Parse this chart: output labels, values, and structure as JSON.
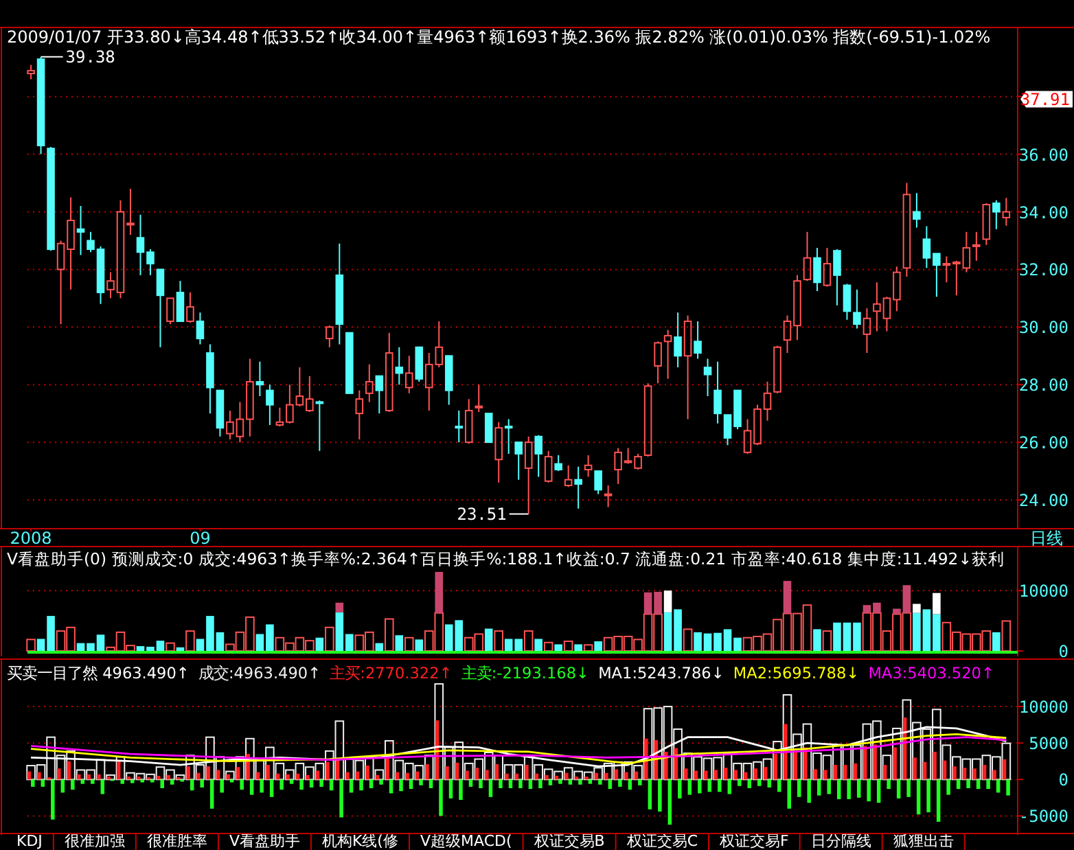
{
  "chart_data": [
    {
      "type": "candlestick",
      "subtitle": "2009/01/07 开33.80↓高34.48↑低33.52↑收34.00↑量4963↑额1693↑换2.36% 振2.82% 涨(0.01)0.03% 指数(-69.51)-1.02%",
      "categories": [
        "2008",
        null,
        null,
        null,
        null,
        null,
        null,
        null,
        null,
        null,
        null,
        null,
        null,
        null,
        null,
        null,
        null,
        "09",
        null,
        null,
        null,
        null,
        null,
        null,
        null,
        null,
        null,
        null,
        null,
        null,
        null,
        null,
        null,
        null,
        null,
        null,
        null,
        null,
        null,
        null,
        null,
        null,
        null,
        null,
        null,
        null,
        null,
        null,
        null,
        null,
        null,
        null,
        null,
        null,
        null,
        null,
        null,
        null,
        null,
        null,
        null,
        null,
        null,
        null,
        null,
        null,
        null,
        null,
        null,
        null,
        null,
        null,
        null,
        null,
        null,
        null,
        null,
        null,
        null,
        null,
        null,
        null,
        null,
        null,
        null,
        null,
        null,
        null,
        null,
        null,
        null,
        null,
        null,
        null,
        null,
        null,
        null,
        null,
        null
      ],
      "ohlc": [
        [
          38.8,
          39.1,
          38.6,
          38.9
        ],
        [
          39.3,
          39.38,
          36.0,
          36.3
        ],
        [
          36.2,
          36.25,
          32.65,
          32.7
        ],
        [
          32.0,
          33.0,
          30.1,
          32.9
        ],
        [
          32.7,
          34.5,
          31.3,
          33.7
        ],
        [
          33.4,
          34.2,
          32.5,
          33.3
        ],
        [
          33.0,
          33.3,
          32.6,
          32.7
        ],
        [
          32.7,
          32.8,
          30.8,
          31.2
        ],
        [
          31.3,
          31.9,
          31.0,
          31.6
        ],
        [
          31.2,
          34.4,
          31.0,
          34.0
        ],
        [
          33.55,
          34.8,
          33.2,
          33.6
        ],
        [
          33.1,
          33.9,
          31.8,
          32.6
        ],
        [
          32.6,
          32.7,
          31.8,
          32.2
        ],
        [
          32.0,
          32.0,
          29.3,
          31.1
        ],
        [
          30.2,
          31.0,
          30.1,
          31.0
        ],
        [
          31.2,
          31.6,
          30.2,
          30.2
        ],
        [
          30.2,
          31.2,
          30.15,
          30.7
        ],
        [
          30.2,
          30.5,
          29.4,
          29.6
        ],
        [
          29.1,
          29.4,
          27.0,
          27.9
        ],
        [
          27.8,
          27.8,
          26.2,
          26.5
        ],
        [
          26.3,
          27.1,
          26.1,
          26.7
        ],
        [
          26.2,
          27.4,
          26.0,
          26.8
        ],
        [
          26.8,
          28.9,
          26.2,
          28.1
        ],
        [
          28.1,
          28.8,
          27.6,
          28.0
        ],
        [
          27.8,
          28.0,
          26.6,
          27.3
        ],
        [
          26.6,
          27.2,
          26.55,
          26.7
        ],
        [
          26.7,
          28.0,
          26.65,
          27.3
        ],
        [
          27.3,
          28.6,
          27.25,
          27.6
        ],
        [
          27.1,
          28.3,
          27.05,
          27.5
        ],
        [
          27.4,
          27.45,
          25.7,
          27.35
        ],
        [
          29.6,
          30.05,
          29.3,
          30.0
        ],
        [
          31.8,
          32.9,
          29.4,
          30.1
        ],
        [
          29.8,
          29.8,
          27.7,
          27.7
        ],
        [
          27.0,
          27.8,
          26.1,
          27.5
        ],
        [
          27.7,
          28.7,
          27.4,
          28.1
        ],
        [
          28.3,
          28.3,
          27.0,
          27.8
        ],
        [
          27.1,
          29.8,
          27.05,
          29.1
        ],
        [
          28.6,
          29.3,
          28.0,
          28.4
        ],
        [
          27.9,
          29.0,
          27.7,
          28.4
        ],
        [
          29.3,
          29.3,
          28.1,
          28.2
        ],
        [
          27.9,
          29.1,
          27.1,
          28.7
        ],
        [
          28.7,
          30.2,
          28.6,
          29.3
        ],
        [
          29.0,
          29.0,
          27.3,
          27.8
        ],
        [
          26.55,
          27.1,
          26.0,
          26.5
        ],
        [
          26.0,
          27.5,
          25.95,
          27.1
        ],
        [
          27.2,
          28.0,
          27.05,
          27.25
        ],
        [
          27.0,
          27.0,
          26.0,
          26.0
        ],
        [
          25.4,
          26.7,
          24.6,
          26.5
        ],
        [
          26.55,
          26.8,
          25.6,
          26.5
        ],
        [
          26.0,
          26.0,
          24.7,
          25.6
        ],
        [
          25.1,
          26.2,
          23.51,
          26.0
        ],
        [
          26.2,
          26.25,
          24.8,
          25.6
        ],
        [
          24.65,
          25.7,
          24.6,
          25.5
        ],
        [
          25.25,
          25.55,
          25.0,
          25.05
        ],
        [
          24.5,
          25.2,
          24.45,
          24.7
        ],
        [
          24.7,
          25.15,
          23.7,
          24.55
        ],
        [
          25.05,
          25.55,
          24.8,
          25.2
        ],
        [
          25.0,
          25.0,
          24.2,
          24.35
        ],
        [
          24.15,
          24.5,
          23.75,
          24.2
        ],
        [
          25.05,
          25.8,
          24.55,
          25.65
        ],
        [
          25.3,
          25.8,
          25.25,
          25.35
        ],
        [
          25.1,
          25.6,
          25.05,
          25.5
        ],
        [
          25.55,
          28.05,
          25.5,
          27.95
        ],
        [
          28.65,
          29.5,
          28.05,
          29.45
        ],
        [
          29.5,
          29.9,
          28.2,
          29.7
        ],
        [
          29.65,
          30.5,
          28.6,
          29.0
        ],
        [
          29.0,
          30.4,
          26.8,
          30.2
        ],
        [
          29.5,
          30.2,
          28.9,
          29.1
        ],
        [
          28.6,
          28.9,
          27.6,
          28.35
        ],
        [
          27.8,
          28.8,
          26.65,
          27.0
        ],
        [
          26.95,
          26.95,
          25.9,
          26.15
        ],
        [
          27.8,
          27.8,
          26.45,
          26.55
        ],
        [
          25.65,
          26.8,
          25.6,
          26.4
        ],
        [
          25.95,
          27.3,
          25.9,
          27.15
        ],
        [
          27.15,
          28.1,
          26.75,
          27.7
        ],
        [
          27.75,
          29.35,
          27.7,
          29.3
        ],
        [
          29.55,
          30.4,
          29.1,
          30.2
        ],
        [
          30.05,
          31.8,
          29.55,
          31.6
        ],
        [
          31.65,
          33.3,
          31.6,
          32.4
        ],
        [
          32.4,
          32.75,
          31.25,
          31.55
        ],
        [
          31.45,
          32.75,
          31.4,
          32.2
        ],
        [
          32.65,
          32.7,
          30.75,
          31.8
        ],
        [
          31.45,
          31.5,
          30.25,
          30.55
        ],
        [
          30.5,
          31.3,
          29.95,
          30.1
        ],
        [
          29.75,
          30.65,
          29.1,
          30.3
        ],
        [
          30.55,
          31.55,
          29.85,
          30.8
        ],
        [
          30.3,
          31.05,
          29.85,
          31.0
        ],
        [
          30.95,
          32.1,
          30.55,
          31.9
        ],
        [
          32.05,
          35.0,
          31.75,
          34.6
        ],
        [
          34.0,
          34.65,
          33.45,
          33.75
        ],
        [
          33.05,
          33.5,
          32.05,
          32.4
        ],
        [
          32.55,
          32.55,
          31.05,
          32.15
        ],
        [
          32.15,
          32.45,
          31.55,
          32.2
        ],
        [
          32.2,
          32.3,
          31.1,
          32.25
        ],
        [
          32.05,
          33.3,
          31.9,
          32.75
        ],
        [
          32.8,
          33.3,
          32.3,
          32.85
        ],
        [
          33.05,
          34.3,
          32.85,
          34.25
        ],
        [
          34.3,
          34.4,
          33.4,
          34.0
        ],
        [
          33.8,
          34.48,
          33.52,
          34.0
        ]
      ],
      "colors": [
        "#ff5454",
        "#54fcfc",
        "#54fcfc",
        "#ff5454",
        "#ff5454",
        "#54fcfc",
        "#54fcfc",
        "#54fcfc",
        "#ff5454",
        "#ff5454",
        "#ff5454",
        "#54fcfc",
        "#54fcfc",
        "#54fcfc",
        "#ff5454",
        "#54fcfc",
        "#ff5454",
        "#54fcfc",
        "#54fcfc",
        "#54fcfc",
        "#ff5454",
        "#ff5454",
        "#ff5454",
        "#54fcfc",
        "#54fcfc",
        "#ff5454",
        "#ff5454",
        "#ff5454",
        "#ff5454",
        "#54fcfc",
        "#ff5454",
        "#54fcfc",
        "#54fcfc",
        "#ff5454",
        "#ff5454",
        "#54fcfc",
        "#ff5454",
        "#54fcfc",
        "#ff5454",
        "#54fcfc",
        "#ff5454",
        "#ff5454",
        "#54fcfc",
        "#54fcfc",
        "#ff5454",
        "#ff5454",
        "#54fcfc",
        "#ff5454",
        "#54fcfc",
        "#54fcfc",
        "#ff5454",
        "#54fcfc",
        "#ff5454",
        "#54fcfc",
        "#ff5454",
        "#54fcfc",
        "#ff5454",
        "#54fcfc",
        "#ff5454",
        "#ff5454",
        "#ff5454",
        "#ff5454",
        "#ff5454",
        "#ff5454",
        "#ff5454",
        "#54fcfc",
        "#ff5454",
        "#54fcfc",
        "#54fcfc",
        "#54fcfc",
        "#54fcfc",
        "#54fcfc",
        "#ff5454",
        "#ff5454",
        "#ff5454",
        "#ff5454",
        "#ff5454",
        "#ff5454",
        "#ff5454",
        "#54fcfc",
        "#ff5454",
        "#54fcfc",
        "#54fcfc",
        "#54fcfc",
        "#ff5454",
        "#ff5454",
        "#ff5454",
        "#ff5454",
        "#ff5454",
        "#54fcfc",
        "#54fcfc",
        "#54fcfc",
        "#ff5454",
        "#ff5454",
        "#ff5454",
        "#ff5454",
        "#ff5454",
        "#54fcfc",
        "#ff5454"
      ],
      "ylim": [
        23.0,
        40.4
      ],
      "yticks": [
        {
          "value": 24,
          "label": "24.00"
        },
        {
          "value": 26,
          "label": "26.00"
        },
        {
          "value": 28,
          "label": "28.00"
        },
        {
          "value": 30,
          "label": "30.00"
        },
        {
          "value": 32,
          "label": "32.00"
        },
        {
          "value": 34,
          "label": "34.00"
        },
        {
          "value": 36,
          "label": "36.00"
        },
        {
          "value": 38,
          "label": null
        }
      ],
      "grid": "y",
      "annotations": [
        "39.38",
        "23.51",
        "37.91",
        "日线"
      ]
    },
    {
      "type": "bar",
      "title": "V看盘助手(0) 预测成交:0 成交:4963↑换手率%:2.364↑百日换手%:188.1↑收益:0.7 流通盘:0.21 市盈率:40.618 集中度:11.492↓获利",
      "categories": [
        null,
        null,
        null,
        null,
        null,
        null,
        null,
        null,
        null,
        null,
        null,
        null,
        null,
        null,
        null,
        null,
        null,
        null,
        null,
        null,
        null,
        null,
        null,
        null,
        null,
        null,
        null,
        null,
        null,
        null,
        null,
        null,
        null,
        null,
        null,
        null,
        null,
        null,
        null,
        null,
        null,
        null,
        null,
        null,
        null,
        null,
        null,
        null,
        null,
        null,
        null,
        null,
        null,
        null,
        null,
        null,
        null,
        null,
        null,
        null,
        null,
        null,
        null,
        null,
        null,
        null,
        null,
        null,
        null,
        null,
        null,
        null,
        null,
        null,
        null,
        null,
        null,
        null,
        null,
        null,
        null,
        null,
        null,
        null,
        null,
        null,
        null,
        null,
        null,
        null,
        null,
        null,
        null,
        null,
        null,
        null,
        null,
        null,
        null
      ],
      "stacked": true,
      "series": [
        {
          "colors": [
            "#ff5454",
            "#54fcfc",
            "#54fcfc",
            "#ff5454",
            "#ff5454",
            "#54fcfc",
            "#54fcfc",
            "#54fcfc",
            "#ff5454",
            "#ff5454",
            "#ff5454",
            "#54fcfc",
            "#54fcfc",
            "#54fcfc",
            "#ff5454",
            "#54fcfc",
            "#ff5454",
            "#54fcfc",
            "#54fcfc",
            "#54fcfc",
            "#ff5454",
            "#ff5454",
            "#ff5454",
            "#54fcfc",
            "#54fcfc",
            "#ff5454",
            "#ff5454",
            "#ff5454",
            "#ff5454",
            "#54fcfc",
            "#ff5454",
            "#54fcfc",
            "#54fcfc",
            "#ff5454",
            "#ff5454",
            "#54fcfc",
            "#ff5454",
            "#54fcfc",
            "#ff5454",
            "#54fcfc",
            "#ff5454",
            "#ff5454",
            "#54fcfc",
            "#54fcfc",
            "#ff5454",
            "#ff5454",
            "#54fcfc",
            "#ff5454",
            "#54fcfc",
            "#54fcfc",
            "#ff5454",
            "#54fcfc",
            "#ff5454",
            "#54fcfc",
            "#ff5454",
            "#54fcfc",
            "#ff5454",
            "#54fcfc",
            "#ff5454",
            "#ff5454",
            "#ff5454",
            "#ff5454",
            "#ff5454",
            "#ff5454",
            "#54fcfc",
            "#54fcfc",
            "#ff5454",
            "#54fcfc",
            "#54fcfc",
            "#54fcfc",
            "#54fcfc",
            "#54fcfc",
            "#ff5454",
            "#ff5454",
            "#ff5454",
            "#ff5454",
            "#ff5454",
            "#ff5454",
            "#ff5454",
            "#54fcfc",
            "#ff5454",
            "#54fcfc",
            "#54fcfc",
            "#54fcfc",
            "#ff5454",
            "#ff5454",
            "#ff5454",
            "#ff5454",
            "#ff5454",
            "#54fcfc",
            "#54fcfc",
            "#54fcfc",
            "#ff5454",
            "#ff5454",
            "#ff5454",
            "#ff5454",
            "#ff5454",
            "#54fcfc",
            "#ff5454"
          ],
          "values": [
            1900,
            2000,
            5800,
            3300,
            3900,
            1300,
            1300,
            2700,
            600,
            3100,
            900,
            800,
            700,
            1700,
            1300,
            600,
            3300,
            2000,
            5800,
            3100,
            1100,
            3100,
            5600,
            2800,
            4400,
            2200,
            1300,
            2200,
            1700,
            2200,
            3900,
            6400,
            2800,
            2600,
            3100,
            1300,
            5300,
            2600,
            2200,
            1900,
            3300,
            6300,
            4400,
            5100,
            2200,
            2800,
            3700,
            3300,
            2000,
            2000,
            3300,
            2000,
            1400,
            1100,
            1600,
            1100,
            1000,
            1600,
            2200,
            2400,
            2400,
            1900,
            6100,
            6100,
            6400,
            6900,
            3600,
            3100,
            2900,
            3000,
            3600,
            2200,
            2200,
            2400,
            2800,
            5200,
            6200,
            6200,
            7600,
            3600,
            3300,
            4700,
            4700,
            4700,
            6300,
            6300,
            3300,
            6100,
            6300,
            6300,
            6900,
            6100,
            4700,
            3100,
            2800,
            2800,
            3300,
            3100,
            4963
          ]
        },
        {
          "colors": [
            null,
            null,
            null,
            null,
            null,
            null,
            null,
            null,
            null,
            null,
            null,
            null,
            null,
            null,
            null,
            null,
            null,
            null,
            null,
            null,
            null,
            null,
            null,
            null,
            null,
            null,
            null,
            null,
            null,
            null,
            null,
            "#c8466e",
            null,
            null,
            null,
            null,
            null,
            null,
            null,
            null,
            null,
            "#c8466e",
            null,
            null,
            null,
            null,
            null,
            null,
            null,
            null,
            null,
            null,
            null,
            null,
            null,
            null,
            null,
            null,
            null,
            null,
            null,
            null,
            "#c8466e",
            "#c8466e",
            "#ffffff",
            null,
            null,
            null,
            null,
            null,
            null,
            null,
            null,
            null,
            null,
            null,
            "#c8466e",
            null,
            null,
            null,
            null,
            null,
            null,
            null,
            "#c8466e",
            "#c8466e",
            null,
            "#c8466e",
            "#c8466e",
            "#ffffff",
            null,
            "#ffffff",
            null,
            null,
            null,
            null,
            null,
            null,
            null
          ],
          "values": [
            null,
            null,
            null,
            null,
            null,
            null,
            null,
            null,
            null,
            null,
            null,
            null,
            null,
            null,
            null,
            null,
            null,
            null,
            null,
            null,
            null,
            null,
            null,
            null,
            null,
            null,
            null,
            null,
            null,
            null,
            null,
            1600,
            null,
            null,
            null,
            null,
            null,
            null,
            null,
            null,
            null,
            6800,
            null,
            null,
            null,
            null,
            null,
            null,
            null,
            null,
            null,
            null,
            null,
            null,
            null,
            null,
            null,
            null,
            null,
            null,
            null,
            null,
            3600,
            3700,
            3600,
            null,
            null,
            null,
            null,
            null,
            null,
            null,
            null,
            null,
            null,
            null,
            5400,
            null,
            null,
            null,
            null,
            null,
            null,
            null,
            1300,
            1700,
            null,
            900,
            4600,
            1500,
            null,
            3500,
            null,
            null,
            null,
            null,
            null,
            null,
            null
          ]
        }
      ],
      "ylim": [
        -900,
        17300
      ],
      "yticks": [
        0,
        10000
      ],
      "grid": "y",
      "ref_lines": [
        {
          "axis": "y",
          "value": 0,
          "color": "#20ff20"
        }
      ]
    },
    {
      "type": "bar",
      "title": "买卖一目了然 4963.490↑",
      "categories": [
        null,
        null,
        null,
        null,
        null,
        null,
        null,
        null,
        null,
        null,
        null,
        null,
        null,
        null,
        null,
        null,
        null,
        null,
        null,
        null,
        null,
        null,
        null,
        null,
        null,
        null,
        null,
        null,
        null,
        null,
        null,
        null,
        null,
        null,
        null,
        null,
        null,
        null,
        null,
        null,
        null,
        null,
        null,
        null,
        null,
        null,
        null,
        null,
        null,
        null,
        null,
        null,
        null,
        null,
        null,
        null,
        null,
        null,
        null,
        null,
        null,
        null,
        null,
        null,
        null,
        null,
        null,
        null,
        null,
        null,
        null,
        null,
        null,
        null,
        null,
        null,
        null,
        null,
        null,
        null,
        null,
        null,
        null,
        null,
        null,
        null,
        null,
        null,
        null,
        null,
        null,
        null,
        null,
        null,
        null,
        null,
        null,
        null,
        null
      ],
      "series": [
        {
          "name": "成交:4963.490↑",
          "color": "#f0f0f0",
          "values": [
            1900,
            2000,
            5800,
            3300,
            3900,
            1300,
            1300,
            2700,
            600,
            3100,
            900,
            800,
            700,
            1700,
            1300,
            600,
            3300,
            2000,
            5800,
            3100,
            1100,
            3100,
            5600,
            2800,
            4400,
            2200,
            1300,
            2200,
            1700,
            2200,
            3900,
            8000,
            2800,
            2600,
            3100,
            1300,
            5300,
            2600,
            2200,
            1900,
            3300,
            13100,
            4400,
            5100,
            2200,
            2800,
            3700,
            3300,
            2000,
            2000,
            3300,
            2000,
            1400,
            1100,
            1600,
            1100,
            1000,
            1600,
            2200,
            2400,
            2400,
            1900,
            9700,
            9800,
            10000,
            6900,
            3600,
            3100,
            2900,
            3000,
            3600,
            2200,
            2200,
            2400,
            2800,
            5200,
            11600,
            6200,
            7600,
            3600,
            3300,
            4700,
            4700,
            4700,
            7600,
            8000,
            3300,
            7000,
            10900,
            7800,
            6900,
            9600,
            4700,
            3100,
            2800,
            2800,
            3300,
            3100,
            4963.49
          ]
        },
        {
          "name": "主买:2770.322↑",
          "color": "#ff2020",
          "values": [
            1100,
            1000,
            300,
            1500,
            2500,
            700,
            700,
            700,
            400,
            2500,
            400,
            400,
            300,
            500,
            600,
            300,
            1800,
            900,
            1800,
            1300,
            700,
            1700,
            3500,
            1000,
            2000,
            800,
            700,
            800,
            600,
            1200,
            2400,
            2800,
            1000,
            1100,
            1900,
            600,
            3400,
            1000,
            900,
            1100,
            2100,
            8100,
            1800,
            2300,
            1200,
            1600,
            1300,
            2100,
            800,
            800,
            2000,
            800,
            600,
            500,
            900,
            400,
            400,
            900,
            900,
            1400,
            1000,
            1100,
            5600,
            5400,
            3800,
            4300,
            1500,
            1200,
            1200,
            1300,
            1600,
            1300,
            1000,
            1500,
            1700,
            3500,
            7600,
            3800,
            4400,
            1400,
            1300,
            2000,
            2000,
            2200,
            4600,
            4800,
            2000,
            4400,
            8500,
            3000,
            2400,
            3800,
            2600,
            1800,
            1600,
            1500,
            2000,
            1300,
            2770.322
          ]
        },
        {
          "name": "主卖:-2193.168↓",
          "color": "#20ff20",
          "values": [
            -1000,
            -1000,
            -5500,
            -1800,
            -1400,
            -600,
            -600,
            -2000,
            -200,
            -600,
            -500,
            -400,
            -400,
            -1200,
            -700,
            -300,
            -1500,
            -1100,
            -4000,
            -1800,
            -400,
            -1400,
            -2100,
            -1800,
            -2400,
            -1400,
            -600,
            -1400,
            -1100,
            -1000,
            -1500,
            -5200,
            -1800,
            -1500,
            -1200,
            -700,
            -1900,
            -1600,
            -1300,
            -800,
            -1200,
            -5000,
            -2600,
            -2800,
            -1000,
            -1200,
            -2400,
            -1200,
            -1200,
            -1200,
            -1300,
            -1200,
            -800,
            -600,
            -700,
            -700,
            -600,
            -700,
            -1300,
            -1000,
            -1400,
            -800,
            -4100,
            -4400,
            -6200,
            -2600,
            -2100,
            -1900,
            -1700,
            -1700,
            -2000,
            -900,
            -1200,
            -900,
            -1100,
            -1700,
            -4000,
            -2400,
            -3200,
            -2200,
            -2000,
            -2700,
            -2700,
            -2500,
            -3000,
            -3200,
            -1300,
            -2600,
            -2400,
            -4800,
            -4500,
            -5800,
            -2100,
            -1300,
            -1200,
            -1300,
            -1300,
            -1800,
            -2193.168
          ]
        },
        {
          "name": "MA1:5243.786↓",
          "type": "line",
          "color": "#ffffff",
          "values": [
            3000,
            null,
            null,
            null,
            null,
            2800,
            null,
            null,
            null,
            null,
            2500,
            null,
            null,
            null,
            null,
            2000,
            null,
            null,
            null,
            null,
            2700,
            null,
            null,
            null,
            null,
            3000,
            null,
            null,
            null,
            null,
            2700,
            null,
            null,
            null,
            null,
            3000,
            null,
            null,
            null,
            null,
            null,
            4500,
            null,
            null,
            null,
            4400,
            null,
            null,
            3500,
            null,
            null,
            null,
            2700,
            null,
            null,
            null,
            null,
            1800,
            null,
            null,
            2000,
            null,
            3000,
            null,
            4500,
            null,
            5800,
            null,
            null,
            null,
            5800,
            null,
            null,
            null,
            null,
            4000,
            null,
            null,
            5000,
            null,
            null,
            null,
            4700,
            null,
            null,
            5800,
            null,
            null,
            6500,
            null,
            7200,
            null,
            null,
            7000,
            null,
            null,
            6000,
            null,
            5243.786
          ]
        },
        {
          "name": "MA2:5695.788↓",
          "type": "line",
          "color": "#ffff00",
          "values": [
            4200,
            null,
            null,
            null,
            null,
            null,
            null,
            null,
            null,
            null,
            3000,
            null,
            null,
            null,
            null,
            null,
            null,
            null,
            null,
            null,
            2500,
            null,
            null,
            null,
            null,
            null,
            null,
            null,
            null,
            null,
            2800,
            null,
            null,
            null,
            null,
            null,
            null,
            null,
            null,
            null,
            null,
            null,
            4000,
            null,
            null,
            null,
            null,
            null,
            null,
            null,
            3800,
            null,
            null,
            null,
            null,
            null,
            null,
            null,
            2500,
            null,
            2200,
            null,
            null,
            null,
            null,
            null,
            3500,
            null,
            null,
            null,
            null,
            null,
            3800,
            null,
            null,
            null,
            null,
            null,
            4200,
            null,
            null,
            null,
            null,
            null,
            5000,
            null,
            null,
            null,
            null,
            null,
            6000,
            null,
            null,
            6200,
            null,
            null,
            null,
            null,
            5695.788
          ]
        },
        {
          "name": "MA3:5403.520↑",
          "type": "line",
          "color": "#ff00ff",
          "values": [
            4600,
            null,
            null,
            null,
            null,
            null,
            null,
            null,
            null,
            null,
            3500,
            null,
            null,
            null,
            null,
            null,
            null,
            null,
            null,
            null,
            3000,
            null,
            null,
            null,
            null,
            null,
            null,
            null,
            null,
            null,
            2700,
            null,
            null,
            null,
            null,
            null,
            null,
            null,
            null,
            null,
            3200,
            null,
            null,
            null,
            null,
            null,
            null,
            null,
            null,
            null,
            3300,
            null,
            null,
            null,
            null,
            null,
            null,
            null,
            3000,
            null,
            null,
            null,
            null,
            null,
            null,
            null,
            3200,
            null,
            null,
            null,
            null,
            null,
            null,
            null,
            null,
            3700,
            null,
            null,
            null,
            null,
            null,
            null,
            null,
            null,
            4300,
            null,
            null,
            null,
            null,
            null,
            5500,
            null,
            null,
            null,
            5800,
            null,
            null,
            null,
            5403.52
          ]
        }
      ],
      "ylim": [
        -7600,
        16500
      ],
      "yticks": [
        -5000,
        0,
        5000,
        10000
      ],
      "grid": "y",
      "legend": "top",
      "annotations": [
        "KDJ",
        "很准加强",
        "很准胜率",
        "V看盘助手",
        "机构K线(修",
        "V超级MACD(",
        "权证交易B",
        "权证交易C",
        "权证交易F",
        "日分隔线",
        "狐狸出击"
      ]
    }
  ]
}
